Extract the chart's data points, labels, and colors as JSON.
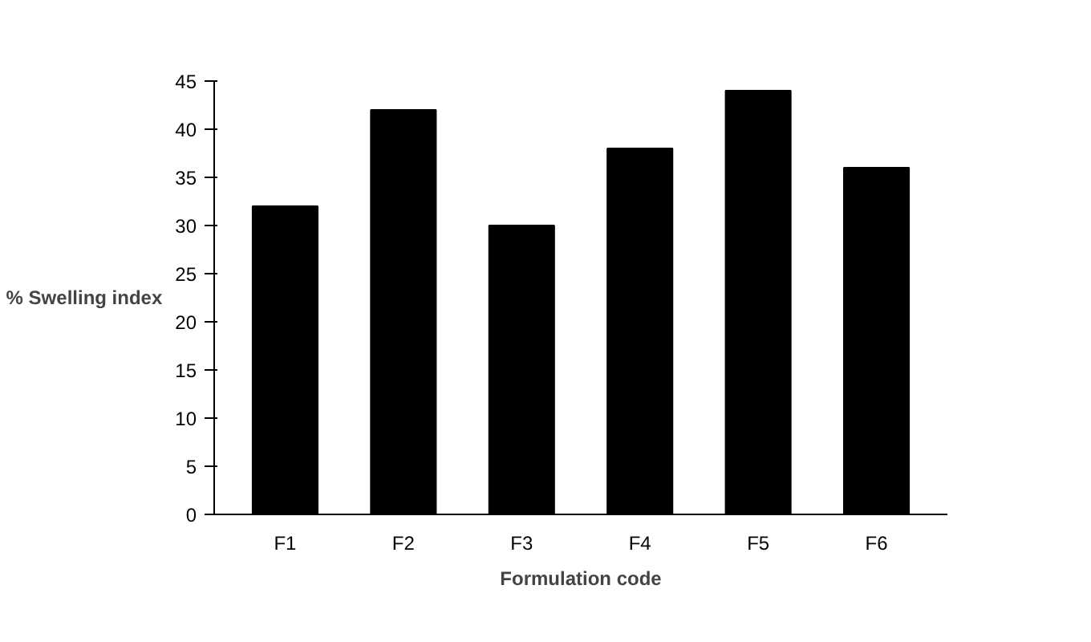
{
  "chart_data": {
    "type": "bar",
    "xlabel": "Formulation code",
    "ylabel": "% Swelling index",
    "categories": [
      "F1",
      "F2",
      "F3",
      "F4",
      "F5",
      "F6"
    ],
    "values": [
      32,
      42,
      30,
      38,
      44,
      36
    ],
    "color": "#000000",
    "ylim": [
      0,
      45
    ],
    "yticks": [
      0,
      5,
      10,
      15,
      20,
      25,
      30,
      35,
      40,
      45
    ],
    "grid": false
  }
}
